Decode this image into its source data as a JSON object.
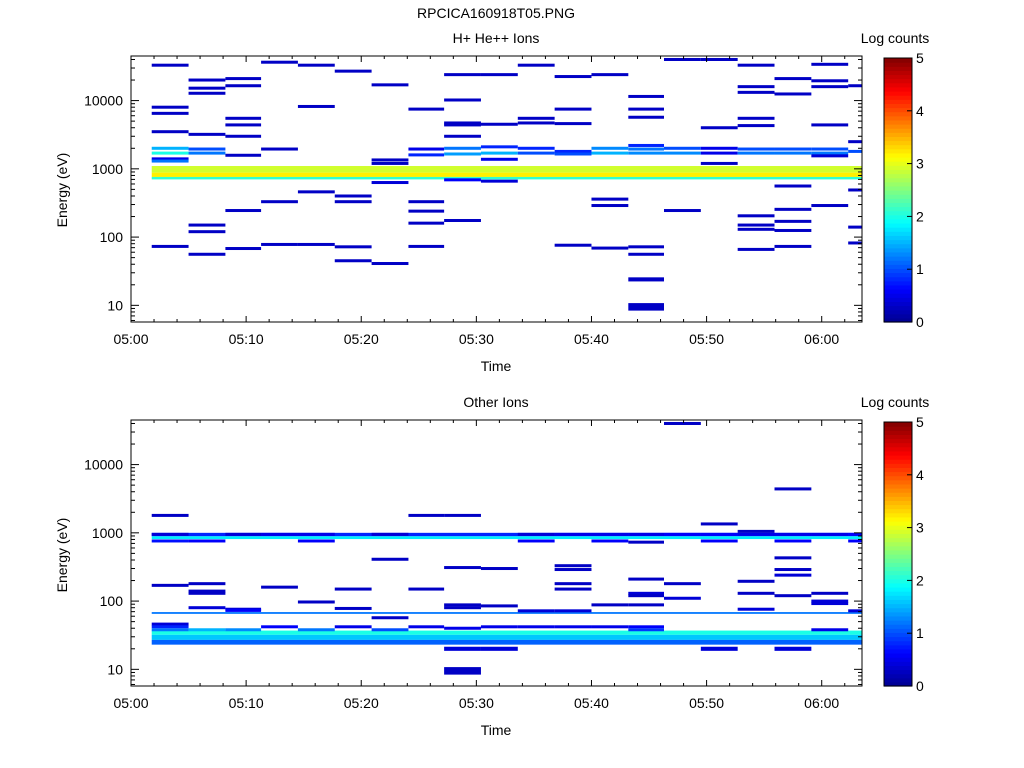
{
  "figure": {
    "title": "RPCICA160918T05.PNG"
  },
  "colors": {
    "jet": [
      "#00008f",
      "#0000ff",
      "#0080ff",
      "#00ffff",
      "#80ff80",
      "#ffff00",
      "#ff8000",
      "#ff0000",
      "#800000"
    ]
  },
  "chart_data": [
    {
      "type": "heatmap",
      "title": "H+ He++ Ions",
      "xlabel": "Time",
      "ylabel": "Energy (eV)",
      "x_ticks": [
        "05:00",
        "05:10",
        "05:20",
        "05:30",
        "05:40",
        "05:50",
        "06:00"
      ],
      "x_tick_minutes": [
        0,
        10,
        20,
        30,
        40,
        50,
        60
      ],
      "xlim_minutes": [
        0,
        63.5
      ],
      "y_scale": "log",
      "ylim": [
        5.7,
        45000
      ],
      "y_ticks": [
        10,
        100,
        1000,
        10000
      ],
      "colorbar": {
        "label": "Log counts",
        "range": [
          0,
          5
        ],
        "ticks": [
          "0",
          "1",
          "2",
          "3",
          "4",
          "5"
        ]
      },
      "time_bins_minutes": [
        1.8,
        5.0,
        8.2,
        11.3,
        14.5,
        17.7,
        20.9,
        24.1,
        27.2,
        30.4,
        33.6,
        36.8,
        40.0,
        43.2,
        46.3,
        49.5,
        52.7,
        55.9,
        59.1,
        62.3
      ],
      "bands": [
        {
          "e_low": 880,
          "e_high": 1100,
          "level": 2.9
        },
        {
          "e_low": 760,
          "e_high": 880,
          "level": 3.2
        },
        {
          "e_low": 700,
          "e_high": 760,
          "level": 2.1
        }
      ],
      "cells": [
        [
          0,
          2000,
          1.5
        ],
        [
          0,
          1700,
          2.0
        ],
        [
          0,
          1400,
          0.5
        ],
        [
          0,
          1300,
          1.2
        ],
        [
          0,
          8000,
          0.3
        ],
        [
          0,
          6500,
          0.3
        ],
        [
          0,
          3500,
          0.3
        ],
        [
          0,
          33000,
          0.3
        ],
        [
          0,
          73,
          0.3
        ],
        [
          1,
          1950,
          1.0
        ],
        [
          1,
          1700,
          1.2
        ],
        [
          1,
          3200,
          0.3
        ],
        [
          1,
          12800,
          0.3
        ],
        [
          1,
          20000,
          0.3
        ],
        [
          1,
          15200,
          0.3
        ],
        [
          1,
          150,
          0.3
        ],
        [
          1,
          120,
          0.3
        ],
        [
          1,
          56,
          0.3
        ],
        [
          2,
          21000,
          0.3
        ],
        [
          2,
          16500,
          0.3
        ],
        [
          2,
          5500,
          0.3
        ],
        [
          2,
          4400,
          0.3
        ],
        [
          2,
          3000,
          0.3
        ],
        [
          2,
          1580,
          0.3
        ],
        [
          2,
          245,
          0.3
        ],
        [
          2,
          68,
          0.3
        ],
        [
          3,
          36500,
          0.3
        ],
        [
          3,
          1950,
          0.3
        ],
        [
          3,
          330,
          0.3
        ],
        [
          3,
          78,
          0.3
        ],
        [
          4,
          33000,
          0.3
        ],
        [
          4,
          8200,
          0.3
        ],
        [
          4,
          460,
          0.3
        ],
        [
          4,
          78,
          0.3
        ],
        [
          5,
          27000,
          0.3
        ],
        [
          5,
          400,
          0.3
        ],
        [
          5,
          330,
          0.3
        ],
        [
          5,
          72,
          0.3
        ],
        [
          5,
          45,
          0.3
        ],
        [
          6,
          17000,
          0.3
        ],
        [
          6,
          1350,
          0.3
        ],
        [
          6,
          1200,
          0.3
        ],
        [
          6,
          630,
          0.4
        ],
        [
          6,
          41,
          0.3
        ],
        [
          7,
          7500,
          0.3
        ],
        [
          7,
          1950,
          0.5
        ],
        [
          7,
          1600,
          0.8
        ],
        [
          7,
          330,
          0.3
        ],
        [
          7,
          240,
          0.3
        ],
        [
          7,
          160,
          0.3
        ],
        [
          7,
          73,
          0.3
        ],
        [
          8,
          24000,
          0.3
        ],
        [
          8,
          10200,
          0.3
        ],
        [
          8,
          4700,
          0.3
        ],
        [
          8,
          4400,
          0.3
        ],
        [
          8,
          3000,
          0.3
        ],
        [
          8,
          2000,
          1.2
        ],
        [
          8,
          1650,
          1.4
        ],
        [
          8,
          690,
          0.6
        ],
        [
          8,
          175,
          0.3
        ],
        [
          9,
          24000,
          0.3
        ],
        [
          9,
          4500,
          0.3
        ],
        [
          9,
          2100,
          0.8
        ],
        [
          9,
          1700,
          1.5
        ],
        [
          9,
          1380,
          0.5
        ],
        [
          9,
          660,
          0.4
        ],
        [
          10,
          33000,
          0.3
        ],
        [
          10,
          5500,
          0.3
        ],
        [
          10,
          4700,
          0.3
        ],
        [
          10,
          2000,
          0.8
        ],
        [
          10,
          1700,
          1.0
        ],
        [
          11,
          22500,
          0.3
        ],
        [
          11,
          7500,
          0.3
        ],
        [
          11,
          4600,
          0.3
        ],
        [
          11,
          1800,
          0.8
        ],
        [
          11,
          1650,
          1.0
        ],
        [
          11,
          76,
          0.3
        ],
        [
          12,
          24000,
          0.3
        ],
        [
          12,
          2000,
          1.3
        ],
        [
          12,
          1700,
          1.5
        ],
        [
          12,
          360,
          0.3
        ],
        [
          12,
          290,
          0.3
        ],
        [
          12,
          69,
          0.3
        ],
        [
          13,
          11500,
          0.3
        ],
        [
          13,
          7500,
          0.3
        ],
        [
          13,
          5700,
          0.3
        ],
        [
          13,
          2200,
          0.8
        ],
        [
          13,
          1950,
          1.2
        ],
        [
          13,
          1700,
          1.3
        ],
        [
          13,
          72,
          0.3
        ],
        [
          13,
          56,
          0.3
        ],
        [
          13,
          24,
          0.3
        ],
        [
          13,
          9.5,
          0.3
        ],
        [
          14,
          40000,
          0.3
        ],
        [
          14,
          2000,
          1.0
        ],
        [
          14,
          1700,
          1.3
        ],
        [
          14,
          245,
          0.3
        ],
        [
          15,
          40000,
          0.3
        ],
        [
          15,
          4000,
          0.3
        ],
        [
          15,
          2000,
          0.5
        ],
        [
          15,
          1700,
          0.5
        ],
        [
          15,
          1200,
          0.3
        ],
        [
          16,
          33000,
          0.3
        ],
        [
          16,
          16000,
          0.3
        ],
        [
          16,
          13200,
          0.3
        ],
        [
          16,
          5500,
          0.3
        ],
        [
          16,
          4300,
          0.3
        ],
        [
          16,
          1950,
          1.0
        ],
        [
          16,
          1700,
          1.2
        ],
        [
          16,
          205,
          0.3
        ],
        [
          16,
          150,
          0.3
        ],
        [
          16,
          130,
          0.3
        ],
        [
          16,
          66,
          0.3
        ],
        [
          17,
          21000,
          0.3
        ],
        [
          17,
          12500,
          0.3
        ],
        [
          17,
          1950,
          1.0
        ],
        [
          17,
          1700,
          1.2
        ],
        [
          17,
          560,
          0.3
        ],
        [
          17,
          255,
          0.3
        ],
        [
          17,
          170,
          0.3
        ],
        [
          17,
          125,
          0.3
        ],
        [
          17,
          73,
          0.3
        ],
        [
          18,
          34000,
          0.3
        ],
        [
          18,
          19500,
          0.3
        ],
        [
          18,
          16000,
          0.3
        ],
        [
          18,
          4400,
          0.3
        ],
        [
          18,
          1950,
          1.0
        ],
        [
          18,
          1700,
          1.2
        ],
        [
          18,
          1550,
          0.4
        ],
        [
          18,
          290,
          0.3
        ],
        [
          19,
          16500,
          0.3
        ],
        [
          19,
          2500,
          0.3
        ],
        [
          19,
          1800,
          1.0
        ],
        [
          19,
          490,
          0.3
        ],
        [
          19,
          140,
          0.3
        ],
        [
          19,
          82,
          0.3
        ]
      ]
    },
    {
      "type": "heatmap",
      "title": "Other Ions",
      "xlabel": "Time",
      "ylabel": "Energy (eV)",
      "x_ticks": [
        "05:00",
        "05:10",
        "05:20",
        "05:30",
        "05:40",
        "05:50",
        "06:00"
      ],
      "x_tick_minutes": [
        0,
        10,
        20,
        30,
        40,
        50,
        60
      ],
      "xlim_minutes": [
        0,
        63.5
      ],
      "y_scale": "log",
      "ylim": [
        5.7,
        45000
      ],
      "y_ticks": [
        10,
        100,
        1000,
        10000
      ],
      "colorbar": {
        "label": "Log counts",
        "range": [
          0,
          5
        ],
        "ticks": [
          "0",
          "1",
          "2",
          "3",
          "4",
          "5"
        ]
      },
      "time_bins_minutes": [
        1.8,
        5.0,
        8.2,
        11.3,
        14.5,
        17.7,
        20.9,
        24.1,
        27.2,
        30.4,
        33.6,
        36.8,
        40.0,
        43.2,
        46.3,
        49.5,
        52.7,
        55.9,
        59.1,
        62.3
      ],
      "bands": [
        {
          "e_low": 890,
          "e_high": 1000,
          "level": 0.8
        },
        {
          "e_low": 810,
          "e_high": 890,
          "level": 1.8
        },
        {
          "e_low": 65,
          "e_high": 69,
          "level": 1.2
        },
        {
          "e_low": 32,
          "e_high": 37,
          "level": 2.0
        },
        {
          "e_low": 27,
          "e_high": 32,
          "level": 1.6
        },
        {
          "e_low": 23,
          "e_high": 27,
          "level": 1.1
        }
      ],
      "cells": [
        [
          0,
          1800,
          0.3
        ],
        [
          0,
          950,
          0.4
        ],
        [
          0,
          760,
          0.7
        ],
        [
          0,
          170,
          0.3
        ],
        [
          0,
          46,
          0.4
        ],
        [
          0,
          42,
          0.8
        ],
        [
          0,
          38,
          1.2
        ],
        [
          1,
          760,
          0.6
        ],
        [
          1,
          180,
          0.3
        ],
        [
          1,
          140,
          0.3
        ],
        [
          1,
          130,
          0.3
        ],
        [
          1,
          80,
          0.4
        ],
        [
          1,
          38,
          1.5
        ],
        [
          2,
          950,
          0.4
        ],
        [
          2,
          76,
          0.4
        ],
        [
          2,
          73,
          0.6
        ],
        [
          2,
          38,
          1.3
        ],
        [
          3,
          950,
          0.5
        ],
        [
          3,
          160,
          0.3
        ],
        [
          3,
          42,
          0.6
        ],
        [
          4,
          950,
          0.5
        ],
        [
          4,
          760,
          0.6
        ],
        [
          4,
          97,
          0.3
        ],
        [
          4,
          38,
          1.2
        ],
        [
          5,
          150,
          0.3
        ],
        [
          5,
          78,
          0.3
        ],
        [
          5,
          42,
          0.5
        ],
        [
          6,
          950,
          0.4
        ],
        [
          6,
          410,
          0.3
        ],
        [
          6,
          57,
          0.3
        ],
        [
          6,
          38,
          1.0
        ],
        [
          7,
          1800,
          0.3
        ],
        [
          7,
          150,
          0.3
        ],
        [
          7,
          42,
          0.5
        ],
        [
          8,
          1800,
          0.3
        ],
        [
          8,
          310,
          0.3
        ],
        [
          8,
          88,
          0.3
        ],
        [
          8,
          80,
          0.3
        ],
        [
          8,
          40,
          0.5
        ],
        [
          8,
          20,
          0.4
        ],
        [
          8,
          9.5,
          0.3
        ],
        [
          9,
          300,
          0.3
        ],
        [
          9,
          85,
          0.3
        ],
        [
          9,
          42,
          0.5
        ],
        [
          9,
          20,
          0.4
        ],
        [
          10,
          950,
          0.4
        ],
        [
          10,
          760,
          0.6
        ],
        [
          10,
          72,
          0.4
        ],
        [
          10,
          42,
          0.5
        ],
        [
          11,
          950,
          0.5
        ],
        [
          11,
          330,
          0.3
        ],
        [
          11,
          290,
          0.3
        ],
        [
          11,
          180,
          0.3
        ],
        [
          11,
          150,
          0.3
        ],
        [
          11,
          72,
          0.4
        ],
        [
          11,
          42,
          0.5
        ],
        [
          12,
          950,
          0.5
        ],
        [
          12,
          760,
          0.6
        ],
        [
          12,
          88,
          0.3
        ],
        [
          12,
          42,
          0.5
        ],
        [
          13,
          950,
          0.5
        ],
        [
          13,
          730,
          0.3
        ],
        [
          13,
          210,
          0.3
        ],
        [
          13,
          130,
          0.4
        ],
        [
          13,
          120,
          0.3
        ],
        [
          13,
          88,
          0.3
        ],
        [
          13,
          42,
          0.6
        ],
        [
          13,
          38,
          0.9
        ],
        [
          14,
          40000,
          0.3
        ],
        [
          14,
          950,
          0.6
        ],
        [
          14,
          180,
          0.3
        ],
        [
          14,
          110,
          0.4
        ],
        [
          15,
          1350,
          0.3
        ],
        [
          15,
          950,
          0.6
        ],
        [
          15,
          760,
          0.6
        ],
        [
          15,
          20,
          0.4
        ],
        [
          16,
          1050,
          0.3
        ],
        [
          16,
          950,
          0.5
        ],
        [
          16,
          195,
          0.3
        ],
        [
          16,
          130,
          0.3
        ],
        [
          16,
          76,
          0.4
        ],
        [
          17,
          4400,
          0.3
        ],
        [
          17,
          950,
          0.5
        ],
        [
          17,
          760,
          0.6
        ],
        [
          17,
          430,
          0.3
        ],
        [
          17,
          290,
          0.3
        ],
        [
          17,
          240,
          0.4
        ],
        [
          17,
          120,
          0.3
        ],
        [
          17,
          20,
          0.4
        ],
        [
          18,
          950,
          0.5
        ],
        [
          18,
          130,
          0.3
        ],
        [
          18,
          100,
          0.4
        ],
        [
          18,
          92,
          0.4
        ],
        [
          18,
          38,
          0.5
        ],
        [
          19,
          950,
          0.6
        ],
        [
          19,
          760,
          0.6
        ],
        [
          19,
          72,
          0.4
        ]
      ]
    }
  ]
}
